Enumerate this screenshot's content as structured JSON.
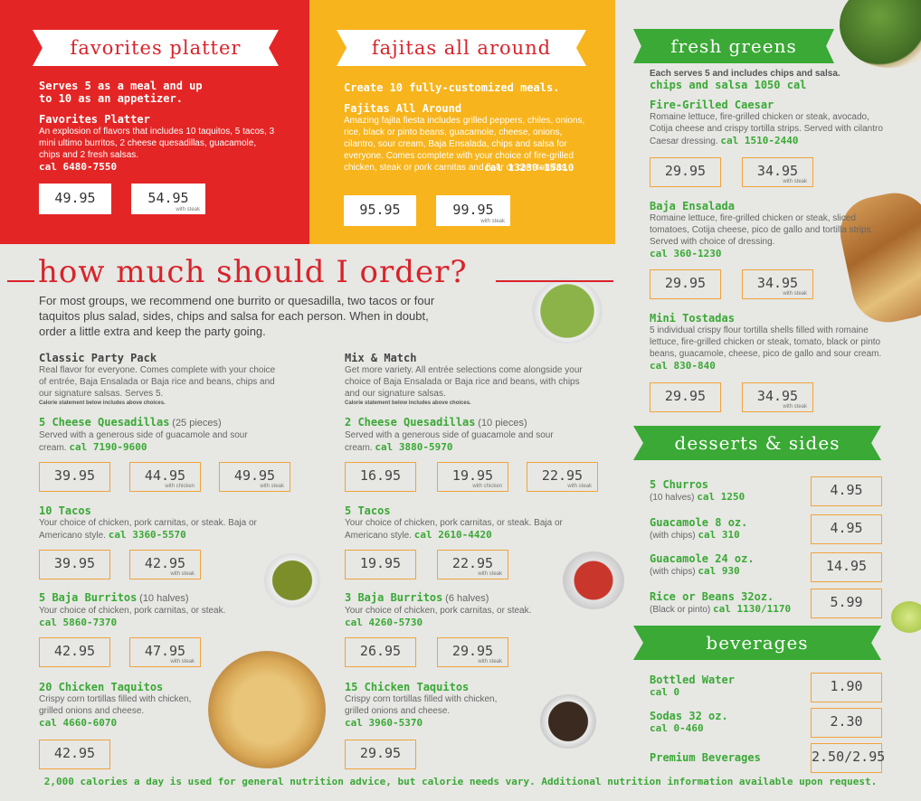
{
  "favorites": {
    "ribbon": "favorites platter",
    "lead": "Serves 5 as a meal and up to 10 as an appetizer.",
    "name": "Favorites Platter",
    "desc": "An explosion of flavors that includes 10 taquitos, 5 tacos, 3 mini ultimo burritos, 2 cheese quesadillas, guacamole, chips and 2 fresh salsas.",
    "cal": "cal 6480-7550",
    "price": "49.95",
    "price_steak": "54.95",
    "steak_label": "with steak"
  },
  "fajitas": {
    "ribbon": "fajitas all around",
    "lead": "Create 10 fully-customized meals.",
    "name": "Fajitas All Around",
    "desc": "Amazing fajita fiesta includes grilled peppers, chiles, onions, rice, black or pinto beans, guacamole, cheese, onions, cilantro, sour cream, Baja Ensalada, chips and salsa for everyone. Comes complete with your choice of fire-grilled chicken, steak or pork carnitas and flour or corn tortillas.",
    "cal": "cal 13230-15810",
    "price": "95.95",
    "price_steak": "99.95",
    "steak_label": "with steak"
  },
  "howmuch": {
    "title": "how much should I order?",
    "intro": "For most groups, we recommend one burrito or quesadilla, two tacos or four taquitos plus salad, sides, chips and salsa for each person. When in doubt, order a little extra and keep the party going."
  },
  "classic": {
    "title": "Classic Party Pack",
    "desc": "Real flavor for everyone. Comes complete with your choice of entrée, Baja Ensalada or Baja rice and beans, chips and our signature salsas. Serves 5.",
    "note": "Calorie statement below includes above choices.",
    "items": [
      {
        "name": "5 Cheese Quesadillas",
        "pieces": "(25 pieces)",
        "desc": "Served with a generous side of guacamole and sour cream.",
        "cal": "cal 7190-9600",
        "prices": [
          "39.95",
          "44.95",
          "49.95"
        ],
        "labels": [
          "",
          "with chicken",
          "with steak"
        ]
      },
      {
        "name": "10 Tacos",
        "pieces": "",
        "desc": "Your choice of chicken, pork carnitas, or steak. Baja or Americano style.",
        "cal": "cal 3360-5570",
        "prices": [
          "39.95",
          "42.95"
        ],
        "labels": [
          "",
          "with steak"
        ]
      },
      {
        "name": "5 Baja Burritos",
        "pieces": "(10 halves)",
        "desc": "Your choice of chicken, pork carnitas, or steak.",
        "cal": "cal 5860-7370",
        "prices": [
          "42.95",
          "47.95"
        ],
        "labels": [
          "",
          "with steak"
        ]
      },
      {
        "name": "20 Chicken Taquitos",
        "pieces": "",
        "desc": "Crispy corn tortillas filled with chicken, grilled onions and cheese.",
        "cal": "cal 4660-6070",
        "prices": [
          "42.95"
        ],
        "labels": [
          ""
        ]
      }
    ]
  },
  "mix": {
    "title": "Mix & Match",
    "desc": "Get more variety. All entrée selections come alongside your choice of Baja Ensalada or Baja rice and beans, with chips and our signature salsas.",
    "note": "Calorie statement below includes above choices.",
    "items": [
      {
        "name": "2 Cheese Quesadillas",
        "pieces": "(10 pieces)",
        "desc": "Served with a generous side of guacamole and sour cream.",
        "cal": "cal 3880-5970",
        "prices": [
          "16.95",
          "19.95",
          "22.95"
        ],
        "labels": [
          "",
          "with chicken",
          "with steak"
        ]
      },
      {
        "name": "5 Tacos",
        "pieces": "",
        "desc": "Your choice of chicken, pork carnitas, or steak. Baja or Americano style.",
        "cal": "cal 2610-4420",
        "prices": [
          "19.95",
          "22.95"
        ],
        "labels": [
          "",
          "with steak"
        ]
      },
      {
        "name": "3 Baja Burritos",
        "pieces": "(6 halves)",
        "desc": "Your choice of chicken, pork carnitas, or steak.",
        "cal": "cal 4260-5730",
        "prices": [
          "26.95",
          "29.95"
        ],
        "labels": [
          "",
          "with steak"
        ]
      },
      {
        "name": "15 Chicken Taquitos",
        "pieces": "",
        "desc": "Crispy corn tortillas filled with chicken, grilled onions and cheese.",
        "cal": "cal 3960-5370",
        "prices": [
          "29.95"
        ],
        "labels": [
          ""
        ]
      }
    ]
  },
  "greens": {
    "ribbon": "fresh greens",
    "intro": "Each serves 5 and includes chips and salsa.",
    "chips": "chips and salsa 1050 cal",
    "items": [
      {
        "name": "Fire-Grilled Caesar",
        "desc": "Romaine lettuce, fire-grilled chicken or steak, avocado, Cotija cheese and crispy tortilla strips. Served with cilantro Caesar dressing.",
        "cal": "cal 1510-2440",
        "prices": [
          "29.95",
          "34.95"
        ],
        "labels": [
          "",
          "with steak"
        ]
      },
      {
        "name": "Baja Ensalada",
        "desc": "Romaine lettuce, fire-grilled chicken or steak, sliced tomatoes, Cotija cheese, pico de gallo and tortilla strips. Served with choice of dressing.",
        "cal": "cal 360-1230",
        "prices": [
          "29.95",
          "34.95"
        ],
        "labels": [
          "",
          "with steak"
        ]
      },
      {
        "name": "Mini Tostadas",
        "desc": "5 individual crispy flour tortilla shells filled with romaine lettuce, fire-grilled chicken or steak, tomato, black or pinto beans, guacamole, cheese, pico de gallo and sour cream.",
        "cal": "cal 830-840",
        "prices": [
          "29.95",
          "34.95"
        ],
        "labels": [
          "",
          "with steak"
        ]
      }
    ]
  },
  "desserts": {
    "ribbon": "desserts & sides",
    "items": [
      {
        "name": "5 Churros",
        "sub": "(10 halves)",
        "cal": "cal 1250",
        "price": "4.95"
      },
      {
        "name": "Guacamole 8 oz.",
        "sub": "(with chips)",
        "cal": "cal 310",
        "price": "4.95"
      },
      {
        "name": "Guacamole 24 oz.",
        "sub": "(with chips)",
        "cal": "cal 930",
        "price": "14.95"
      },
      {
        "name": "Rice or Beans 32oz.",
        "sub": "(Black or pinto)",
        "cal": "cal 1130/1170",
        "price": "5.99"
      }
    ]
  },
  "beverages": {
    "ribbon": "beverages",
    "items": [
      {
        "name": "Bottled Water",
        "cal": "cal 0",
        "price": "1.90"
      },
      {
        "name": "Sodas 32 oz.",
        "cal": "cal 0-460",
        "price": "2.30"
      },
      {
        "name": "Premium Beverages",
        "cal": "",
        "price": "2.50/2.95"
      }
    ]
  },
  "footer": "2,000 calories a day is used for general nutrition advice, but calorie needs vary. Additional nutrition information available upon request."
}
